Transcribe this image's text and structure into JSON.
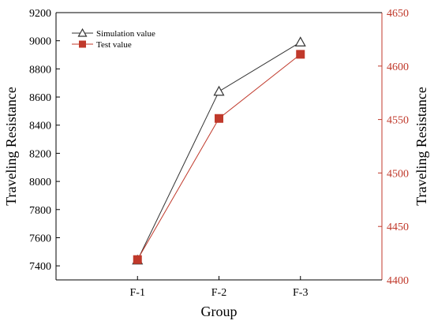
{
  "chart_data": {
    "type": "line",
    "categories": [
      "F-1",
      "F-2",
      "F-3"
    ],
    "xlabel": "Group",
    "ylabel": "Traveling Resistance",
    "ylabel_right": "Traveling Resistance",
    "ylim": [
      7300,
      9200
    ],
    "ylim_right": [
      4400,
      4650
    ],
    "yticks": [
      7400,
      7600,
      7800,
      8000,
      8200,
      8400,
      8600,
      8800,
      9000,
      9200
    ],
    "yticks_right": [
      4400,
      4450,
      4500,
      4550,
      4600,
      4650
    ],
    "grid": false,
    "legend_position": "top-left",
    "series": [
      {
        "name": "Simulation value",
        "axis": "left",
        "values": [
          7440,
          8640,
          8990
        ],
        "marker": "open-triangle",
        "color": "#333333"
      },
      {
        "name": "Test value",
        "axis": "right",
        "values": [
          4419,
          4551,
          4611
        ],
        "marker": "filled-square",
        "color": "#c0392b"
      }
    ]
  },
  "colors": {
    "left_axis": "#000000",
    "right_axis": "#c0392b"
  }
}
